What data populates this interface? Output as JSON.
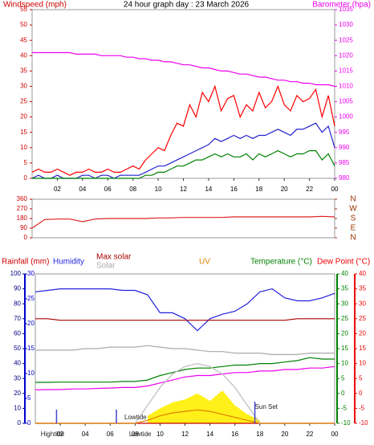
{
  "chart_data": [
    {
      "type": "line",
      "title": "24 hour graph day : 23 March 2026",
      "ylabel": "Windspeed (mph)",
      "y2label": "Barometer (hpa)",
      "y_color": "#cc0000",
      "y2_color": "#ee00ee",
      "x": [
        0,
        0.5,
        1,
        1.5,
        2,
        2.5,
        3,
        3.5,
        4,
        4.5,
        5,
        5.5,
        6,
        6.5,
        7,
        7.5,
        8,
        8.5,
        9,
        9.5,
        10,
        10.5,
        11,
        11.5,
        12,
        12.5,
        13,
        13.5,
        14,
        14.5,
        15,
        15.5,
        16,
        16.5,
        17,
        17.5,
        18,
        18.5,
        19,
        19.5,
        20,
        20.5,
        21,
        21.5,
        22,
        22.5,
        23,
        23.5,
        24
      ],
      "xlim": [
        0,
        24
      ],
      "xticks": [
        {
          "value": 2,
          "label": "02"
        },
        {
          "value": 4,
          "label": "04"
        },
        {
          "value": 6,
          "label": "06"
        },
        {
          "value": 8,
          "label": "08"
        },
        10,
        12,
        14,
        16,
        18,
        20,
        22,
        {
          "value": 24,
          "label": "00"
        }
      ],
      "ylim": [
        0,
        55
      ],
      "yticks": [
        0,
        5,
        10,
        15,
        20,
        25,
        30,
        35,
        40,
        45,
        50,
        55
      ],
      "y2lim": [
        980,
        1035
      ],
      "y2ticks": [
        980,
        985,
        990,
        995,
        1000,
        1005,
        1010,
        1015,
        1020,
        1025,
        1030,
        1035
      ],
      "series": [
        {
          "color": "#ee00ee",
          "axis": "y2",
          "values": [
            1021,
            1021,
            1021,
            1021,
            1021,
            1021,
            1021,
            1020.5,
            1020.5,
            1020.5,
            1020.5,
            1020,
            1020,
            1020,
            1020,
            1019.5,
            1019.5,
            1019,
            1019,
            1018.5,
            1018.5,
            1018,
            1018,
            1017.5,
            1017,
            1017,
            1016.5,
            1016,
            1016,
            1015.5,
            1015,
            1015,
            1014.5,
            1014,
            1014,
            1013.5,
            1013,
            1013,
            1012.5,
            1012,
            1012,
            1011.5,
            1011.5,
            1011,
            1011,
            1010.5,
            1010.5,
            1010.5,
            1010
          ]
        },
        {
          "color": "#ff0000",
          "values": [
            2,
            3,
            2,
            2,
            3,
            2,
            1,
            2,
            2,
            3,
            2,
            2,
            3,
            2,
            2,
            3,
            4,
            3,
            6,
            8,
            10,
            9,
            14,
            18,
            17,
            24,
            20,
            28,
            25,
            30,
            22,
            26,
            27,
            20,
            24,
            22,
            28,
            23,
            25,
            30,
            24,
            22,
            27,
            25,
            26,
            29,
            20,
            27,
            17
          ]
        },
        {
          "color": "#2222cc",
          "values": [
            0,
            1,
            0,
            0,
            1,
            0,
            0,
            0,
            1,
            1,
            0,
            1,
            1,
            0,
            1,
            1,
            1,
            1,
            2,
            3,
            4,
            4,
            5,
            6,
            7,
            8,
            9,
            10,
            11,
            13,
            12,
            13,
            14,
            13,
            14,
            13,
            14,
            14,
            15,
            16,
            15,
            14,
            16,
            16,
            17,
            18,
            15,
            17,
            10
          ]
        },
        {
          "color": "#008000",
          "values": [
            0,
            0,
            0,
            0,
            0,
            0,
            0,
            0,
            0,
            0,
            0,
            0,
            0,
            0,
            0,
            0,
            0,
            0,
            1,
            1,
            2,
            2,
            3,
            4,
            4,
            5,
            6,
            6,
            7,
            8,
            7,
            8,
            7,
            7,
            8,
            6,
            8,
            7,
            8,
            9,
            8,
            7,
            8,
            8,
            9,
            9,
            6,
            8,
            4
          ]
        }
      ]
    },
    {
      "type": "line",
      "y_color": "#cc0000",
      "y2_color": "#993300",
      "x": [
        0,
        1,
        2,
        3,
        4,
        5,
        6,
        7,
        8,
        9,
        10,
        11,
        12,
        13,
        14,
        15,
        16,
        17,
        18,
        19,
        20,
        21,
        22,
        23,
        24
      ],
      "xlim": [
        0,
        24
      ],
      "ylim": [
        0,
        360
      ],
      "yticks": [
        0,
        90,
        180,
        270,
        360
      ],
      "y2ticks": [
        {
          "value": 360,
          "label": "N"
        },
        {
          "value": 270,
          "label": "W"
        },
        {
          "value": 180,
          "label": "S"
        },
        {
          "value": 90,
          "label": "E"
        },
        {
          "value": 0,
          "label": "N"
        }
      ],
      "series": [
        {
          "color": "#dd2222",
          "values": [
            90,
            170,
            175,
            175,
            150,
            175,
            180,
            180,
            180,
            180,
            185,
            185,
            190,
            190,
            190,
            190,
            195,
            195,
            195,
            195,
            195,
            195,
            195,
            200,
            195
          ]
        }
      ]
    },
    {
      "type": "line",
      "x": [
        0,
        1,
        2,
        3,
        4,
        5,
        6,
        7,
        8,
        9,
        10,
        11,
        12,
        13,
        14,
        15,
        16,
        17,
        18,
        19,
        20,
        21,
        22,
        23,
        24
      ],
      "xlim": [
        0,
        24
      ],
      "xticks": [
        {
          "value": 2,
          "label": "02"
        },
        {
          "value": 4,
          "label": "04"
        },
        {
          "value": 6,
          "label": "06"
        },
        {
          "value": 8,
          "label": "08"
        },
        10,
        12,
        14,
        16,
        18,
        20,
        22,
        {
          "value": 24,
          "label": "00"
        }
      ],
      "ylim": [
        0,
        100
      ],
      "yticks": [
        0,
        10,
        20,
        30,
        40,
        50,
        60,
        70,
        80,
        90,
        100
      ],
      "y_color": "#000080",
      "rainlim": [
        0,
        30
      ],
      "rainticks": [
        0,
        5,
        10,
        15,
        20,
        25,
        30
      ],
      "rain_color": "#0000cc",
      "y2lim": [
        -10,
        40
      ],
      "y2ticks": [
        -10,
        -5,
        0,
        5,
        10,
        15,
        20,
        25,
        30,
        35,
        40
      ],
      "y2_color": "#008000",
      "y3lim": [
        -10,
        40
      ],
      "y3ticks": [
        -10,
        -5,
        0,
        5,
        10,
        15,
        20,
        25,
        30,
        35,
        40
      ],
      "y3_color": "#ee0000",
      "series": [
        {
          "name": "Rainfall (mm)",
          "color": "#cc0000",
          "axis": "rain",
          "values": [
            0,
            0,
            0,
            0,
            0,
            0,
            0,
            0,
            0,
            0,
            0,
            0,
            0,
            0,
            0,
            0,
            0,
            0,
            0,
            0,
            0,
            0,
            0,
            0,
            0
          ]
        },
        {
          "name": "Humidity",
          "color": "#2222dd",
          "axis": "y",
          "values": [
            88,
            89,
            90,
            90,
            90,
            90,
            90,
            89,
            89,
            86,
            74,
            74,
            70,
            62,
            70,
            73,
            75,
            80,
            88,
            90,
            84,
            82,
            82,
            84,
            87
          ]
        },
        {
          "name": "Max solar",
          "color": "#aa0000",
          "axis": "y",
          "values": [
            70,
            70,
            69,
            69,
            69,
            69,
            69,
            69,
            69,
            69,
            69,
            69,
            69,
            69,
            69,
            69,
            69,
            69,
            69,
            69,
            69,
            70,
            70,
            70,
            70
          ]
        },
        {
          "name": "Solar",
          "color": "#aaaaaa",
          "axis": "y",
          "values": [
            49,
            49,
            49,
            49,
            50,
            50,
            51,
            51,
            51,
            52,
            51,
            50,
            50,
            49,
            48,
            48,
            47,
            47,
            47,
            46,
            46,
            46,
            47,
            47,
            47
          ]
        },
        {
          "name": "UV",
          "color": "#e08000",
          "axis": "y",
          "values": [
            0,
            0,
            0,
            0,
            0,
            0,
            0,
            0,
            0,
            2,
            5,
            7,
            8,
            9,
            8,
            6,
            4,
            2,
            0,
            0,
            0,
            0,
            0,
            0,
            0
          ]
        },
        {
          "name": "Temperature (°C)",
          "color": "#008000",
          "axis": "y2",
          "values": [
            3.7,
            3.7,
            3.8,
            3.8,
            3.8,
            3.8,
            3.8,
            4,
            4,
            4.5,
            6,
            7,
            8,
            8.5,
            8.5,
            9,
            9.5,
            9.5,
            10,
            10,
            10.5,
            11,
            12,
            11.5,
            11.5
          ]
        },
        {
          "name": "Dew Point (°C)",
          "color": "#ee00ee",
          "legend_color": "#ee0000",
          "axis": "y3",
          "values": [
            1.2,
            1.3,
            1.3,
            1.5,
            1.5,
            1.7,
            1.8,
            2,
            2,
            2.5,
            3.5,
            4.5,
            5.5,
            6,
            6,
            6.5,
            7,
            7,
            7.5,
            7.5,
            8,
            8,
            8.5,
            8.5,
            9
          ]
        },
        {
          "color": "#bbbbbb",
          "axis": "y",
          "values": [
            null,
            null,
            null,
            null,
            null,
            null,
            null,
            null,
            0,
            12,
            24,
            33,
            38,
            40,
            38,
            33,
            24,
            12,
            0,
            null,
            null,
            null,
            null,
            null,
            null
          ]
        },
        {
          "color": "#ffee00",
          "axis": "y",
          "fill": true,
          "values": [
            null,
            null,
            null,
            null,
            null,
            null,
            null,
            null,
            null,
            5,
            10,
            14,
            16,
            20,
            15,
            22,
            12,
            6,
            2,
            null,
            null,
            null,
            null,
            null,
            null
          ]
        }
      ],
      "annotations": [
        {
          "text": "Hightide",
          "x": 1.7
        },
        {
          "text": "Lowtide",
          "x": 6.5
        },
        {
          "text": "Sun Set",
          "x": 17.6
        },
        {
          "text": "Lowtide",
          "x": 7.2
        }
      ]
    }
  ]
}
